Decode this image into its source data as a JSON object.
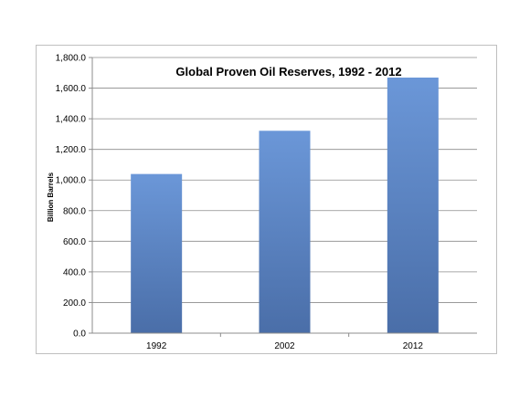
{
  "chart_data": {
    "type": "bar",
    "title": "Global Proven Oil Reserves, 1992 - 2012",
    "xlabel": "",
    "ylabel": "Billion Barrels",
    "categories": [
      "1992",
      "2002",
      "2012"
    ],
    "values": [
      1039.3,
      1321.5,
      1668.9
    ],
    "ylim": [
      0,
      1800
    ],
    "y_ticks": [
      "0.0",
      "200.0",
      "400.0",
      "600.0",
      "800.0",
      "1,000.0",
      "1,200.0",
      "1,400.0",
      "1,600.0",
      "1,800.0"
    ],
    "grid": true,
    "legend": "none",
    "colors": {
      "bar_top": "#6b97d8",
      "bar_bottom": "#4a6ea8",
      "grid": "#8c8c8c",
      "axis": "#8c8c8c"
    }
  }
}
